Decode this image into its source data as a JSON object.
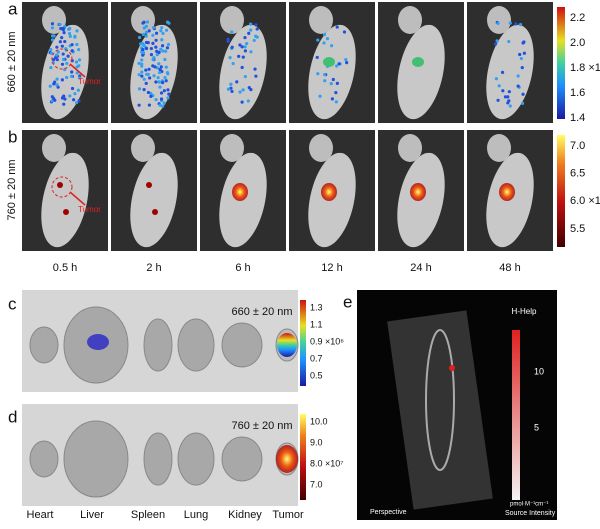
{
  "panel_labels": [
    "a",
    "b",
    "c",
    "d",
    "e"
  ],
  "rows": [
    {
      "label": "660 ± 20 nm",
      "colorbar": [
        "2.2",
        "2.0",
        "1.8 ×10⁶",
        "1.6",
        "1.4"
      ]
    },
    {
      "label": "760 ± 20 nm",
      "colorbar": [
        "7.0",
        "6.5",
        "6.0 ×10⁷",
        "5.5"
      ]
    }
  ],
  "annotations": [
    "Tumor",
    "Tumor"
  ],
  "times": [
    "0.5 h",
    "2 h",
    "6 h",
    "12 h",
    "24 h",
    "48 h"
  ],
  "ex_vivo": [
    {
      "label": "660 ± 20 nm",
      "colorbar": [
        "1.3",
        "1.1",
        "0.9 ×10⁶",
        "0.7",
        "0.5"
      ]
    },
    {
      "label": "760 ± 20 nm",
      "colorbar": [
        "10.0",
        "9.0",
        "8.0 ×10⁷",
        "7.0"
      ]
    }
  ],
  "organs": [
    "Heart",
    "Liver",
    "Spleen",
    "Lung",
    "Kidney",
    "Tumor"
  ],
  "panel_e": {
    "title": "H-Help",
    "colorbar": [
      "10",
      "5"
    ],
    "view": "Perspective",
    "unit": "pmol·M⁻¹cm⁻¹",
    "scale_label": "Source Intensity"
  }
}
